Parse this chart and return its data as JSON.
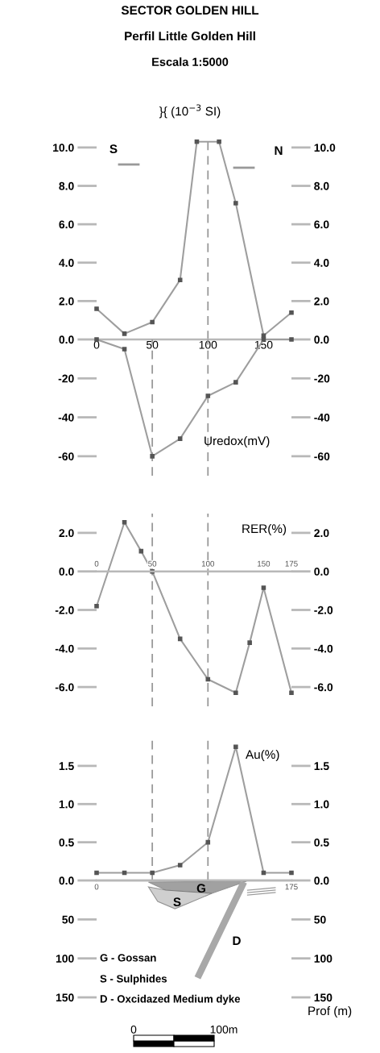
{
  "chart_data": [
    {
      "type": "line",
      "title": "SECTOR GOLDEN HILL",
      "subtitle": "Perfil Little Golden Hill",
      "annotations": [
        "Escala 1:5000",
        "}{ (10$^{−3}$ SI)",
        "S",
        "N"
      ],
      "x": [
        0,
        25,
        50,
        75,
        90,
        110,
        125,
        150,
        175
      ],
      "series": [
        {
          "color": "#9e9e9e",
          "values": [
            1.6,
            0.3,
            0.9,
            3.1,
            10.3,
            10.3,
            7.1,
            0.2,
            1.4
          ]
        }
      ],
      "xlim": [
        0,
        175
      ],
      "xticks": [
        0,
        50,
        100,
        150
      ],
      "ylim": [
        0,
        10.5
      ],
      "yticks": [
        {
          "value": 0,
          "label": "0.0"
        },
        {
          "value": 2,
          "label": "2.0"
        },
        {
          "value": 4,
          "label": "4.0"
        },
        {
          "value": 6,
          "label": "6.0"
        },
        {
          "value": 8,
          "label": "8.0"
        },
        {
          "value": 10,
          "label": "10.0"
        }
      ],
      "y2lim": [
        0,
        10.5
      ],
      "y2ticks": [
        {
          "value": 0,
          "label": "0.0"
        },
        {
          "value": 2,
          "label": "2.0"
        },
        {
          "value": 4,
          "label": "4.0"
        },
        {
          "value": 6,
          "label": "6.0"
        },
        {
          "value": 8,
          "label": "8.0"
        },
        {
          "value": 10,
          "label": "10.0"
        }
      ],
      "ref_lines": [
        {
          "axis": "x",
          "value": 100,
          "color": "#999999",
          "line_style": "dashed"
        }
      ],
      "marker": "square"
    },
    {
      "type": "line",
      "annotations": [
        "Uredox(mV)"
      ],
      "x": [
        0,
        25,
        50,
        75,
        100,
        125,
        150,
        175
      ],
      "series": [
        {
          "color": "#9e9e9e",
          "values": [
            0,
            -5,
            -60,
            -51,
            -29,
            -22,
            0,
            0
          ]
        }
      ],
      "xlim": [
        0,
        175
      ],
      "ylim": [
        -70,
        0
      ],
      "yticks": [
        {
          "value": -20,
          "label": "-20"
        },
        {
          "value": -40,
          "label": "-40"
        },
        {
          "value": -60,
          "label": "-60"
        }
      ],
      "y2lim": [
        -70,
        0
      ],
      "y2ticks": [
        {
          "value": -20,
          "label": "-20"
        },
        {
          "value": -40,
          "label": "-40"
        },
        {
          "value": -60,
          "label": "-60"
        }
      ],
      "ref_lines": [
        {
          "axis": "x",
          "value": 50,
          "color": "#999999",
          "line_style": "dashed"
        },
        {
          "axis": "x",
          "value": 100,
          "color": "#999999",
          "line_style": "dashed"
        }
      ],
      "marker": "square",
      "tick_labels": "y"
    },
    {
      "type": "line",
      "annotations": [
        "RER(%)"
      ],
      "x": [
        0,
        25,
        40,
        50,
        75,
        100,
        125,
        137.5,
        150,
        175
      ],
      "series": [
        {
          "color": "#9e9e9e",
          "values": [
            -1.8,
            2.55,
            1.05,
            0,
            -3.5,
            -5.6,
            -6.3,
            -3.7,
            -0.85,
            -6.3
          ]
        }
      ],
      "xlim": [
        0,
        175
      ],
      "xticks": [
        0,
        50,
        100,
        150,
        175
      ],
      "ylim": [
        -7,
        3
      ],
      "yticks": [
        {
          "value": -6,
          "label": "-6.0"
        },
        {
          "value": -4,
          "label": "-4.0"
        },
        {
          "value": -2,
          "label": "-2.0"
        },
        {
          "value": 0,
          "label": "0.0"
        },
        {
          "value": 2,
          "label": "2.0"
        }
      ],
      "y2lim": [
        -7,
        3
      ],
      "y2ticks": [
        {
          "value": -6,
          "label": "-6.0"
        },
        {
          "value": -4,
          "label": "-4.0"
        },
        {
          "value": -2,
          "label": "-2.0"
        },
        {
          "value": 0,
          "label": "0.0"
        },
        {
          "value": 2,
          "label": "2.0"
        }
      ],
      "ref_lines": [
        {
          "axis": "x",
          "value": 50,
          "color": "#999999",
          "line_style": "dashed"
        },
        {
          "axis": "x",
          "value": 100,
          "color": "#999999",
          "line_style": "dashed"
        }
      ],
      "marker": "square"
    },
    {
      "type": "line",
      "annotations": [
        "Au(%)"
      ],
      "x": [
        0,
        25,
        50,
        75,
        100,
        125,
        150,
        175
      ],
      "series": [
        {
          "color": "#9e9e9e",
          "values": [
            0.1,
            0.1,
            0.1,
            0.2,
            0.5,
            1.75,
            0.1,
            0.1
          ]
        }
      ],
      "xlim": [
        0,
        175
      ],
      "ylim": [
        0,
        1.9
      ],
      "yticks": [
        {
          "value": 0,
          "label": "0.0"
        },
        {
          "value": 0.5,
          "label": "0.5"
        },
        {
          "value": 1,
          "label": "1.0"
        },
        {
          "value": 1.5,
          "label": "1.5"
        }
      ],
      "y2lim": [
        0,
        1.9
      ],
      "y2ticks": [
        {
          "value": 0,
          "label": "0.0"
        },
        {
          "value": 0.5,
          "label": "0.5"
        },
        {
          "value": 1,
          "label": "1.0"
        },
        {
          "value": 1.5,
          "label": "1.5"
        }
      ],
      "ref_lines": [
        {
          "axis": "x",
          "value": 50,
          "color": "#999999",
          "line_style": "dashed"
        },
        {
          "axis": "x",
          "value": 100,
          "color": "#999999",
          "line_style": "dashed"
        }
      ],
      "marker": "square",
      "tick_labels": "y"
    },
    {
      "type": "line",
      "y2label": "Prof (m)",
      "annotations": [
        "G",
        "S",
        "D",
        "G - Gossan",
        "S - Sulphides",
        "D - Oxcidazed Medium dyke",
        "0",
        "100m"
      ],
      "series": [
        {
          "color": "#a8a8a8",
          "x": [
            131,
            92
          ],
          "values": [
            6,
            121
          ]
        }
      ],
      "xlim": [
        0,
        175
      ],
      "xticks": [
        0,
        175
      ],
      "ylim": [
        150,
        0
      ],
      "yticks": [
        50,
        100,
        150
      ],
      "y2lim": [
        150,
        0
      ],
      "y2ticks": [
        50,
        100,
        150
      ]
    }
  ]
}
